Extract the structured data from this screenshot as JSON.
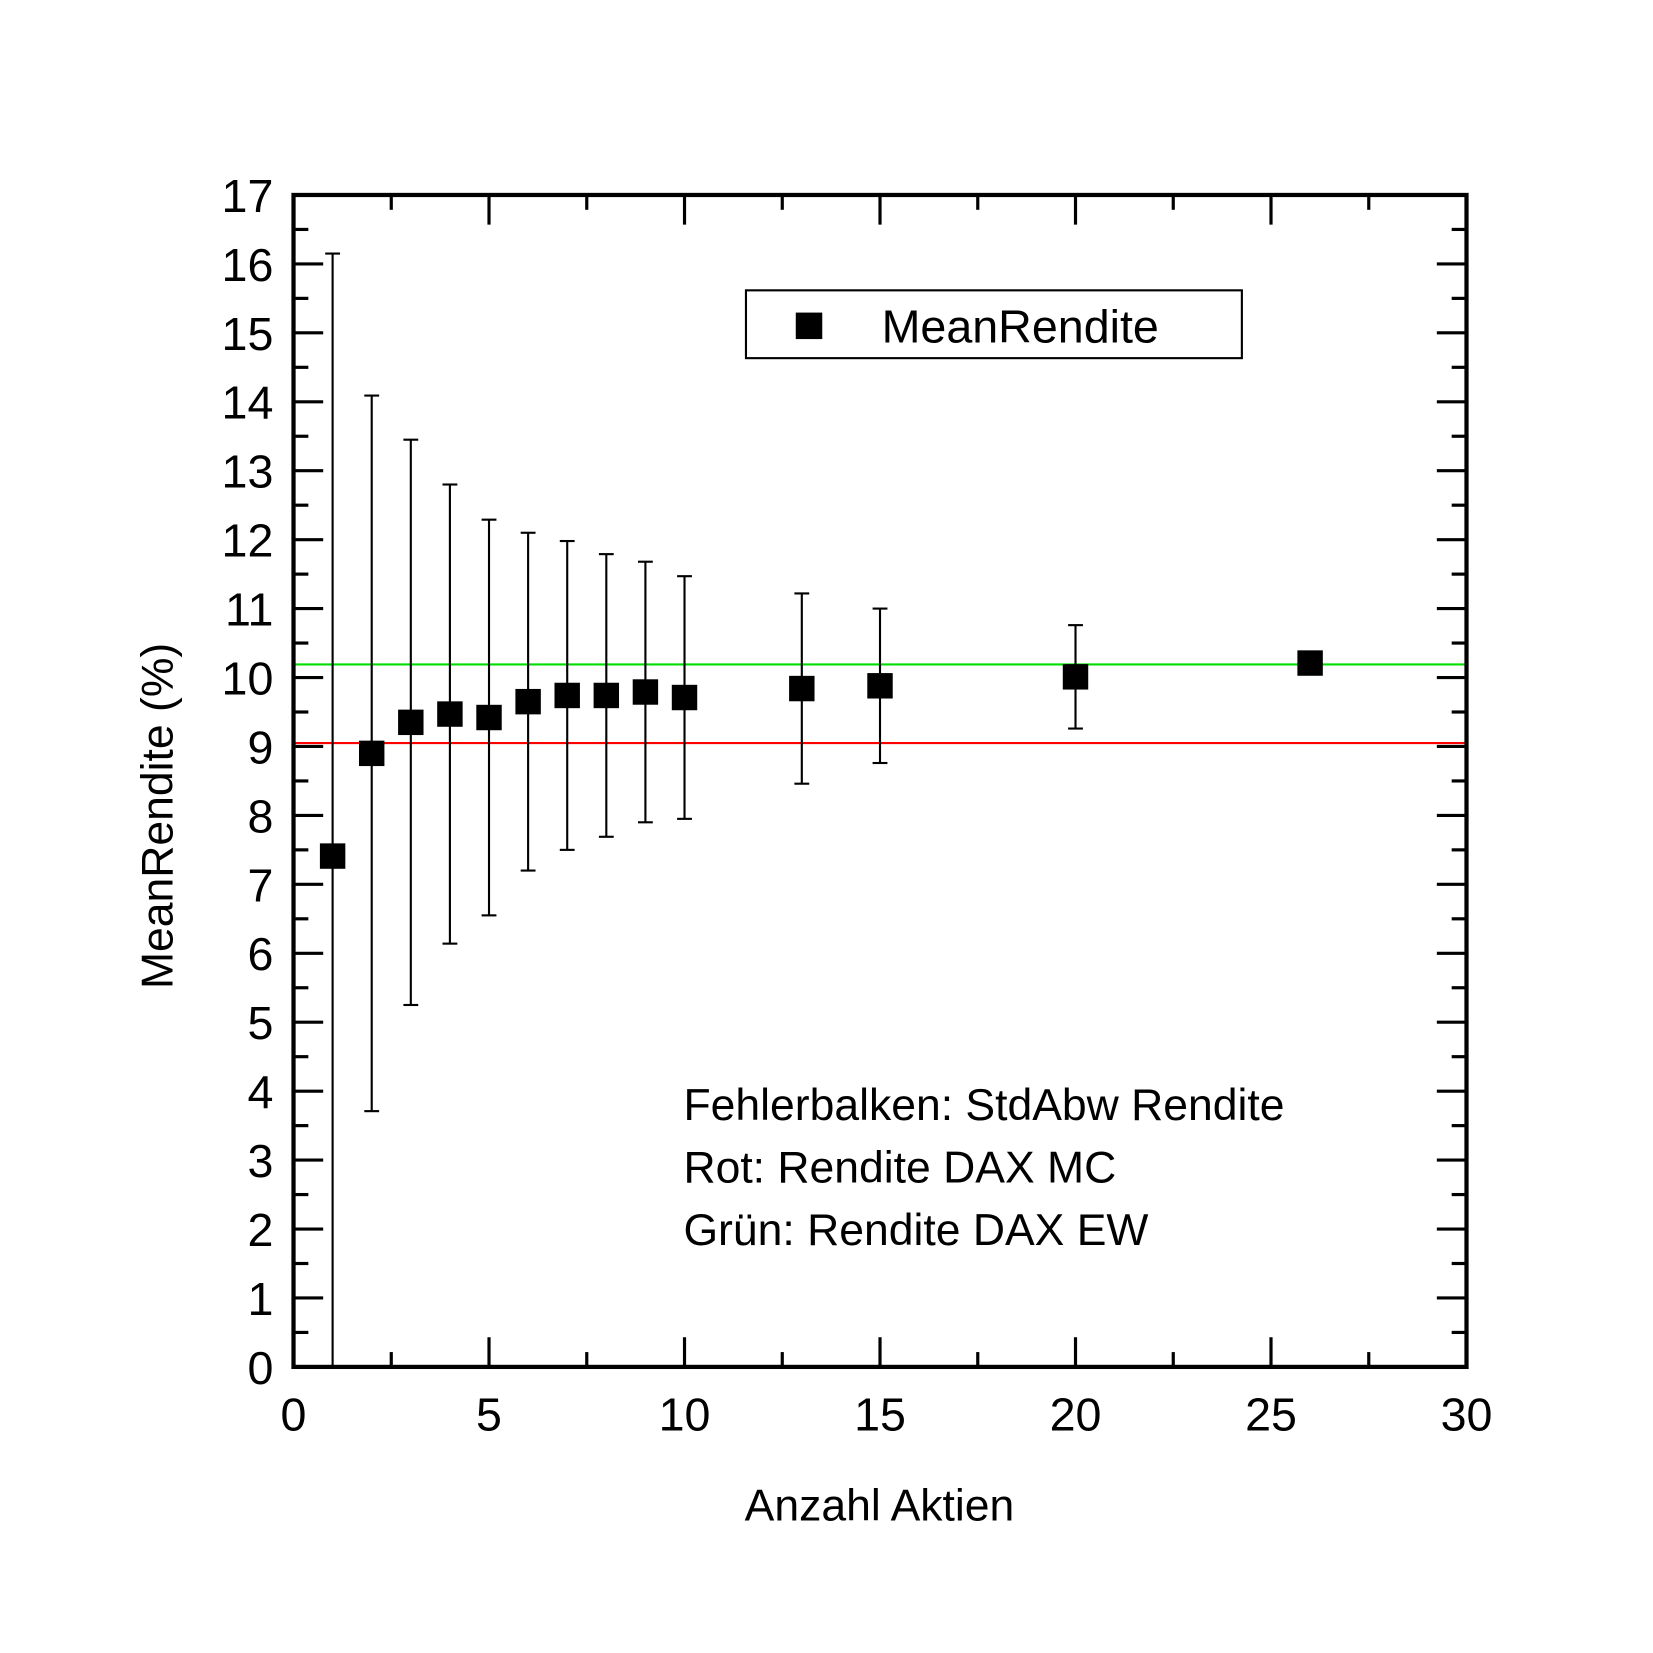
{
  "chart_data": {
    "type": "scatter",
    "xlabel": "Anzahl Aktien",
    "ylabel": "MeanRendite (%)",
    "xlim": [
      0,
      30
    ],
    "ylim": [
      0,
      17
    ],
    "xticks": [
      0,
      5,
      10,
      15,
      20,
      25,
      30
    ],
    "yticks": [
      0,
      1,
      2,
      3,
      4,
      5,
      6,
      7,
      8,
      9,
      10,
      11,
      12,
      13,
      14,
      15,
      16,
      17
    ],
    "grid": false,
    "legend": {
      "position": "top-right",
      "entries": [
        "MeanRendite"
      ]
    },
    "series": [
      {
        "name": "MeanRendite",
        "color": "#000000",
        "x": [
          1,
          2,
          3,
          4,
          5,
          6,
          7,
          8,
          9,
          10,
          13,
          15,
          20,
          26
        ],
        "y": [
          7.41,
          8.9,
          9.35,
          9.47,
          9.42,
          9.65,
          9.74,
          9.74,
          9.79,
          9.71,
          9.84,
          9.88,
          10.01,
          10.21
        ],
        "error": [
          8.74,
          5.19,
          4.1,
          3.33,
          2.87,
          2.45,
          2.24,
          2.05,
          1.89,
          1.76,
          1.38,
          1.12,
          0.75,
          0
        ]
      }
    ],
    "hlines": [
      {
        "name": "Rendite DAX EW",
        "y": 10.19,
        "color": "#00dd00"
      },
      {
        "name": "Rendite DAX MC",
        "y": 9.05,
        "color": "#ff0000"
      }
    ],
    "annotations": [
      "Fehlerbalken: StdAbw Rendite",
      "Rot: Rendite DAX MC",
      "Grün: Rendite DAX EW"
    ]
  }
}
